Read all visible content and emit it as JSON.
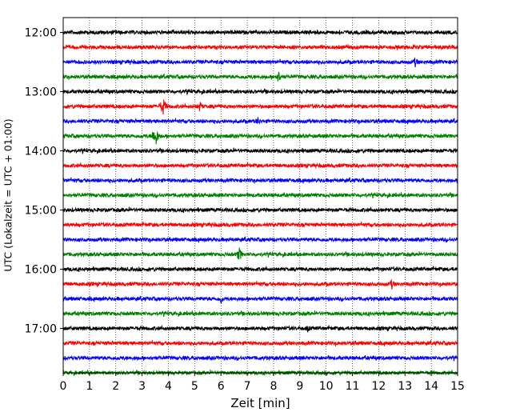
{
  "chart_data": {
    "type": "line",
    "xlabel": "Zeit  [min]",
    "ylabel": "UTC (Lokalzeit = UTC + 01:00)",
    "xlim": [
      0,
      15
    ],
    "x_ticks": [
      "0",
      "1",
      "2",
      "3",
      "4",
      "5",
      "6",
      "7",
      "8",
      "9",
      "10",
      "11",
      "12",
      "13",
      "14",
      "15"
    ],
    "y_ticks": [
      "12:00",
      "13:00",
      "14:00",
      "15:00",
      "16:00",
      "17:00"
    ],
    "grid": "vertical dotted lines at every minute",
    "colors": [
      "#000000",
      "#ff0000",
      "#0000ff",
      "#008000"
    ],
    "rows": [
      {
        "start": "12:00",
        "color": "#000000",
        "events": []
      },
      {
        "start": "12:15",
        "color": "#ff0000",
        "events": []
      },
      {
        "start": "12:30",
        "color": "#0000ff",
        "events": [
          {
            "minute": 13.4,
            "amp": 7
          }
        ]
      },
      {
        "start": "12:45",
        "color": "#008000",
        "events": [
          {
            "minute": 8.2,
            "amp": 8
          }
        ]
      },
      {
        "start": "13:00",
        "color": "#000000",
        "events": []
      },
      {
        "start": "13:15",
        "color": "#ff0000",
        "events": [
          {
            "minute": 3.8,
            "amp": 12
          },
          {
            "minute": 5.2,
            "amp": 7
          }
        ]
      },
      {
        "start": "13:30",
        "color": "#0000ff",
        "events": [
          {
            "minute": 7.4,
            "amp": 6
          }
        ]
      },
      {
        "start": "13:45",
        "color": "#008000",
        "events": [
          {
            "minute": 3.5,
            "amp": 15
          }
        ]
      },
      {
        "start": "14:00",
        "color": "#000000",
        "events": []
      },
      {
        "start": "14:15",
        "color": "#ff0000",
        "events": []
      },
      {
        "start": "14:30",
        "color": "#0000ff",
        "events": []
      },
      {
        "start": "14:45",
        "color": "#008000",
        "events": []
      },
      {
        "start": "15:00",
        "color": "#000000",
        "events": []
      },
      {
        "start": "15:15",
        "color": "#ff0000",
        "events": []
      },
      {
        "start": "15:30",
        "color": "#0000ff",
        "events": []
      },
      {
        "start": "15:45",
        "color": "#008000",
        "events": [
          {
            "minute": 6.7,
            "amp": 9
          }
        ]
      },
      {
        "start": "16:00",
        "color": "#000000",
        "events": []
      },
      {
        "start": "16:15",
        "color": "#ff0000",
        "events": [
          {
            "minute": 12.5,
            "amp": 7
          }
        ]
      },
      {
        "start": "16:30",
        "color": "#0000ff",
        "events": [
          {
            "minute": 6.0,
            "amp": 7
          }
        ]
      },
      {
        "start": "16:45",
        "color": "#008000",
        "events": []
      },
      {
        "start": "17:00",
        "color": "#000000",
        "events": [
          {
            "minute": 9.3,
            "amp": 5
          }
        ]
      },
      {
        "start": "17:15",
        "color": "#ff0000",
        "events": []
      },
      {
        "start": "17:30",
        "color": "#0000ff",
        "events": []
      },
      {
        "start": "17:45",
        "color": "#008000",
        "events": []
      }
    ]
  }
}
